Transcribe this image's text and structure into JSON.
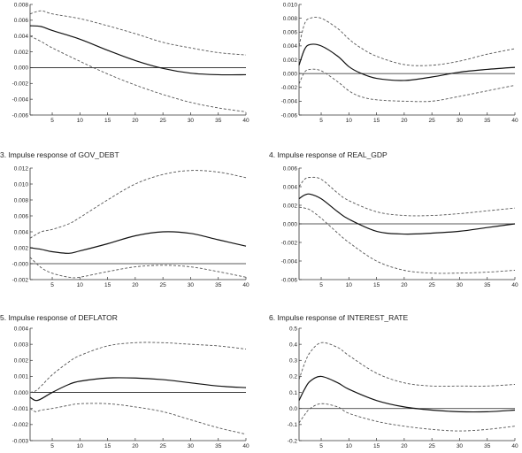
{
  "chart_data": [
    {
      "type": "line",
      "title": "",
      "x": [
        1,
        3,
        5,
        10,
        15,
        20,
        25,
        30,
        35,
        40
      ],
      "xticks": [
        5,
        10,
        15,
        20,
        25,
        30,
        35,
        40
      ],
      "xlim": [
        1,
        40
      ],
      "ylim": [
        -0.006,
        0.008
      ],
      "yticks": [
        "0.008",
        "0.006",
        "0.004",
        "0.002",
        "0.000",
        "-0.002",
        "-0.004",
        "-0.006"
      ],
      "zero_line": true,
      "series": [
        {
          "style": "solid",
          "values": [
            0.0053,
            0.0052,
            0.0047,
            0.0036,
            0.0022,
            0.0009,
            -0.0001,
            -0.0007,
            -0.0009,
            -0.0009
          ]
        },
        {
          "style": "dashed",
          "values": [
            0.0068,
            0.0072,
            0.0068,
            0.0062,
            0.0053,
            0.0043,
            0.0032,
            0.0025,
            0.0019,
            0.0016
          ]
        },
        {
          "style": "dashed",
          "values": [
            0.004,
            0.0033,
            0.0025,
            0.0008,
            -0.0008,
            -0.0022,
            -0.0034,
            -0.0044,
            -0.0051,
            -0.0056
          ]
        }
      ]
    },
    {
      "type": "line",
      "title": "",
      "x": [
        1,
        2,
        3,
        5,
        8,
        10,
        12,
        15,
        20,
        25,
        30,
        35,
        40
      ],
      "xticks": [
        5,
        10,
        15,
        20,
        25,
        30,
        35,
        40
      ],
      "xlim": [
        1,
        40
      ],
      "ylim": [
        -0.006,
        0.01
      ],
      "yticks": [
        "0.010",
        "0.008",
        "0.006",
        "0.004",
        "0.002",
        "0.000",
        "-0.002",
        "-0.004",
        "-0.006"
      ],
      "zero_line": true,
      "series": [
        {
          "style": "solid",
          "values": [
            0.0012,
            0.0035,
            0.0042,
            0.004,
            0.0025,
            0.001,
            0.0001,
            -0.0007,
            -0.001,
            -0.0005,
            0.0002,
            0.0006,
            0.0009
          ]
        },
        {
          "style": "dashed",
          "values": [
            0.004,
            0.0072,
            0.008,
            0.008,
            0.0065,
            0.005,
            0.0038,
            0.0025,
            0.0013,
            0.0012,
            0.0018,
            0.0028,
            0.0036
          ]
        },
        {
          "style": "dashed",
          "values": [
            -0.0015,
            0.0002,
            0.0006,
            0.0004,
            -0.0012,
            -0.0025,
            -0.0033,
            -0.0038,
            -0.004,
            -0.004,
            -0.0033,
            -0.0025,
            -0.0017
          ]
        }
      ]
    },
    {
      "type": "line",
      "title": "3. Impulse response of GOV_DEBT",
      "x": [
        1,
        3,
        5,
        8,
        10,
        15,
        20,
        25,
        30,
        35,
        40
      ],
      "xticks": [
        5,
        10,
        15,
        20,
        25,
        30,
        35,
        40
      ],
      "xlim": [
        1,
        40
      ],
      "ylim": [
        -0.002,
        0.012
      ],
      "yticks": [
        "0.012",
        "0.010",
        "0.008",
        "0.006",
        "0.004",
        "0.002",
        "-0.000",
        "-0.002"
      ],
      "zero_line": true,
      "series": [
        {
          "style": "solid",
          "values": [
            0.002,
            0.0018,
            0.0015,
            0.0013,
            0.0016,
            0.0025,
            0.0035,
            0.004,
            0.0038,
            0.003,
            0.0022
          ]
        },
        {
          "style": "dashed",
          "values": [
            0.0032,
            0.004,
            0.0043,
            0.005,
            0.0058,
            0.008,
            0.01,
            0.0112,
            0.0117,
            0.0115,
            0.0108
          ]
        },
        {
          "style": "dashed",
          "values": [
            0.0008,
            -0.0005,
            -0.0012,
            -0.0017,
            -0.0017,
            -0.001,
            -0.0004,
            -0.0002,
            -0.0004,
            -0.001,
            -0.0017
          ]
        }
      ]
    },
    {
      "type": "line",
      "title": "4. Impulse response of REAL_GDP",
      "x": [
        1,
        2,
        3,
        5,
        8,
        10,
        15,
        20,
        25,
        30,
        35,
        40
      ],
      "xticks": [
        5,
        10,
        15,
        20,
        25,
        30,
        35,
        40
      ],
      "xlim": [
        1,
        40
      ],
      "ylim": [
        -0.006,
        0.006
      ],
      "yticks": [
        "0.006",
        "0.004",
        "0.002",
        "0.000",
        "-0.002",
        "-0.004",
        "-0.006"
      ],
      "zero_line": true,
      "series": [
        {
          "style": "solid",
          "values": [
            0.0027,
            0.0031,
            0.0032,
            0.0027,
            0.0013,
            0.0005,
            -0.0008,
            -0.0011,
            -0.001,
            -0.0008,
            -0.0004,
            0.0
          ]
        },
        {
          "style": "dashed",
          "values": [
            0.004,
            0.0048,
            0.005,
            0.0048,
            0.0033,
            0.0025,
            0.0013,
            0.0009,
            0.0009,
            0.0011,
            0.0014,
            0.0017
          ]
        },
        {
          "style": "dashed",
          "values": [
            0.0018,
            0.0017,
            0.0015,
            0.0006,
            -0.001,
            -0.002,
            -0.004,
            -0.005,
            -0.0053,
            -0.0053,
            -0.0052,
            -0.005
          ]
        }
      ]
    },
    {
      "type": "line",
      "title": "5. Impulse response of DEFLATOR",
      "x": [
        1,
        2,
        3,
        5,
        8,
        10,
        15,
        20,
        25,
        30,
        35,
        40
      ],
      "xticks": [
        5,
        10,
        15,
        20,
        25,
        30,
        35,
        40
      ],
      "xlim": [
        1,
        40
      ],
      "ylim": [
        -0.003,
        0.004
      ],
      "yticks": [
        "0.004",
        "0.003",
        "0.002",
        "0.001",
        "0.000",
        "-0.001",
        "-0.002",
        "-0.003"
      ],
      "zero_line": true,
      "series": [
        {
          "style": "solid",
          "values": [
            -0.0003,
            -0.0005,
            -0.0004,
            0.0,
            0.0005,
            0.0007,
            0.0009,
            0.0009,
            0.0008,
            0.0006,
            0.0004,
            0.0003
          ]
        },
        {
          "style": "dashed",
          "values": [
            0.0,
            0.0001,
            0.0004,
            0.0011,
            0.0019,
            0.0023,
            0.0029,
            0.0031,
            0.0031,
            0.003,
            0.0029,
            0.0027
          ]
        },
        {
          "style": "dashed",
          "values": [
            -0.001,
            -0.0012,
            -0.0011,
            -0.001,
            -0.0008,
            -0.0007,
            -0.0007,
            -0.0009,
            -0.0012,
            -0.0017,
            -0.0022,
            -0.0026
          ]
        }
      ]
    },
    {
      "type": "line",
      "title": "6. Impulse response of INTEREST_RATE",
      "x": [
        1,
        2,
        3,
        5,
        8,
        10,
        15,
        20,
        25,
        30,
        35,
        40
      ],
      "xticks": [
        5,
        10,
        15,
        20,
        25,
        30,
        35,
        40
      ],
      "xlim": [
        1,
        40
      ],
      "ylim": [
        -0.2,
        0.5
      ],
      "yticks": [
        "0.5",
        "0.4",
        "0.3",
        "0.2",
        "0.1",
        "0.0",
        "-0.1",
        "-0.2"
      ],
      "zero_line": true,
      "series": [
        {
          "style": "solid",
          "values": [
            0.05,
            0.12,
            0.17,
            0.2,
            0.16,
            0.12,
            0.05,
            0.01,
            -0.01,
            -0.02,
            -0.02,
            -0.01
          ]
        },
        {
          "style": "dashed",
          "values": [
            0.18,
            0.28,
            0.35,
            0.41,
            0.38,
            0.33,
            0.22,
            0.16,
            0.14,
            0.14,
            0.14,
            0.15
          ]
        },
        {
          "style": "dashed",
          "values": [
            -0.09,
            -0.04,
            0.0,
            0.03,
            0.01,
            -0.03,
            -0.08,
            -0.11,
            -0.13,
            -0.14,
            -0.13,
            -0.11
          ]
        }
      ]
    }
  ]
}
